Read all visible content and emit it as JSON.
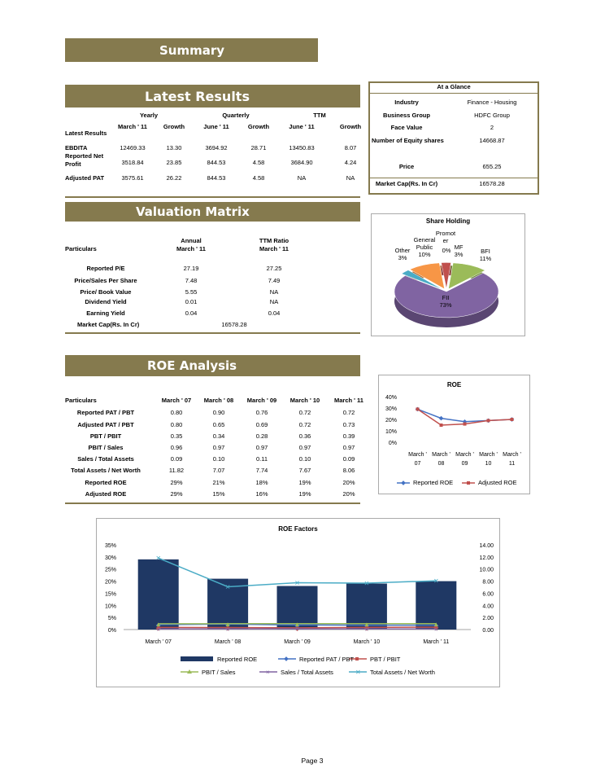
{
  "summary": {
    "title": "Summary"
  },
  "latest_results": {
    "title": "Latest Results",
    "group_headers": [
      "Yearly",
      "Quarterly",
      "TTM"
    ],
    "row_label_header": "Latest Results",
    "columns": [
      "March ' 11",
      "Growth",
      "June ' 11",
      "Growth",
      "June ' 11",
      "Growth"
    ],
    "rows": [
      {
        "label": "EBDITA",
        "values": [
          "12469.33",
          "13.30",
          "3694.92",
          "28.71",
          "13450.83",
          "8.07"
        ]
      },
      {
        "label": "Reported Net Profit",
        "values": [
          "3518.84",
          "23.85",
          "844.53",
          "4.58",
          "3684.90",
          "4.24"
        ]
      },
      {
        "label": "Adjusted PAT",
        "values": [
          "3575.61",
          "26.22",
          "844.53",
          "4.58",
          "NA",
          "NA"
        ]
      }
    ]
  },
  "at_a_glance": {
    "title": "At a Glance",
    "rows": [
      {
        "label": "Industry",
        "value": "Finance - Housing"
      },
      {
        "label": "Business Group",
        "value": "HDFC Group"
      },
      {
        "label": "Face Value",
        "value": "2"
      },
      {
        "label": "Number of Equity shares",
        "value": "14668.87"
      },
      {
        "label": "Price",
        "value": "655.25"
      },
      {
        "label": "Market Cap(Rs. In Cr)",
        "value": "16578.28"
      }
    ]
  },
  "valuation_matrix": {
    "title": "Valuation Matrix",
    "particulars_label": "Particulars",
    "col1_header_1": "Annual",
    "col1_header_2": "March ' 11",
    "col2_header_1": "TTM Ratio",
    "col2_header_2": "March ' 11",
    "rows": [
      {
        "label": "Reported P/E",
        "annual": "27.19",
        "ttm": "27.25"
      },
      {
        "label": "Price/Sales Per Share",
        "annual": "7.48",
        "ttm": "7.49"
      },
      {
        "label": "Price/ Book Value",
        "annual": "5.55",
        "ttm": "NA"
      },
      {
        "label": "Dividend Yield",
        "annual": "0.01",
        "ttm": "NA"
      },
      {
        "label": "Earning Yield",
        "annual": "0.04",
        "ttm": "0.04"
      }
    ],
    "market_cap_label": "Market Cap(Rs. In Cr)",
    "market_cap_value": "16578.28"
  },
  "roe_analysis": {
    "title": "ROE Analysis",
    "particulars_label": "Particulars",
    "columns": [
      "March ' 07",
      "March ' 08",
      "March ' 09",
      "March ' 10",
      "March ' 11"
    ],
    "rows": [
      {
        "label": "Reported PAT / PBT",
        "values": [
          "0.80",
          "0.90",
          "0.76",
          "0.72",
          "0.72"
        ]
      },
      {
        "label": "Adjusted PAT / PBT",
        "values": [
          "0.80",
          "0.65",
          "0.69",
          "0.72",
          "0.73"
        ]
      },
      {
        "label": "PBT / PBIT",
        "values": [
          "0.35",
          "0.34",
          "0.28",
          "0.36",
          "0.39"
        ]
      },
      {
        "label": "PBIT / Sales",
        "values": [
          "0.96",
          "0.97",
          "0.97",
          "0.97",
          "0.97"
        ]
      },
      {
        "label": "Sales / Total Assets",
        "values": [
          "0.09",
          "0.10",
          "0.11",
          "0.10",
          "0.09"
        ]
      },
      {
        "label": "Total Assets / Net Worth",
        "values": [
          "11.82",
          "7.07",
          "7.74",
          "7.67",
          "8.06"
        ]
      },
      {
        "label": "Reported ROE",
        "values": [
          "29%",
          "21%",
          "18%",
          "19%",
          "20%"
        ]
      },
      {
        "label": "Adjusted ROE",
        "values": [
          "29%",
          "15%",
          "16%",
          "19%",
          "20%"
        ]
      }
    ]
  },
  "page_number": "Page 3",
  "colors": {
    "band": "#857a4e",
    "navy": "#1f3864",
    "blue": "#4472c4",
    "red": "#c0504d",
    "green": "#9bbb59",
    "purple": "#8064a2",
    "teal": "#4bacc6",
    "orange": "#f79646"
  },
  "chart_data": [
    {
      "type": "pie",
      "title": "Share Holding",
      "slices": [
        {
          "label": "Promoter",
          "value": 0
        },
        {
          "label": "MF",
          "value": 3
        },
        {
          "label": "BFI",
          "value": 11
        },
        {
          "label": "FII",
          "value": 73
        },
        {
          "label": "Other",
          "value": 3
        },
        {
          "label": "General Public",
          "value": 10
        }
      ],
      "slice_labels": [
        "Promot er",
        "0%",
        "MF 3%",
        "BFI 11%",
        "FII 73%",
        "Other 3%",
        "General Public 10%"
      ]
    },
    {
      "type": "line",
      "title": "ROE",
      "categories": [
        "March ' 07",
        "March ' 08",
        "March ' 09",
        "March ' 10",
        "March ' 11"
      ],
      "y_ticks": [
        "0%",
        "10%",
        "20%",
        "30%",
        "40%"
      ],
      "ylim": [
        0,
        40
      ],
      "series": [
        {
          "name": "Reported ROE",
          "values": [
            29,
            21,
            18,
            19,
            20
          ]
        },
        {
          "name": "Adjusted ROE",
          "values": [
            29,
            15,
            16,
            19,
            20
          ]
        }
      ],
      "legend": "bottom"
    },
    {
      "type": "bar",
      "title": "ROE Factors",
      "categories": [
        "March ' 07",
        "March ' 08",
        "March ' 09",
        "March ' 10",
        "March ' 11"
      ],
      "y_left_ticks": [
        "0%",
        "5%",
        "10%",
        "15%",
        "20%",
        "25%",
        "30%",
        "35%"
      ],
      "y_right_ticks": [
        "0.00",
        "2.00",
        "4.00",
        "6.00",
        "8.00",
        "10.00",
        "12.00",
        "14.00"
      ],
      "ylim_left": [
        0,
        35
      ],
      "ylim_right": [
        0,
        14
      ],
      "bars": {
        "name": "Reported ROE",
        "values": [
          29,
          21,
          18,
          19,
          20
        ]
      },
      "lines": [
        {
          "name": "Reported PAT / PBT",
          "values": [
            0.8,
            0.9,
            0.76,
            0.72,
            0.72
          ]
        },
        {
          "name": "PBT / PBIT",
          "values": [
            0.35,
            0.34,
            0.28,
            0.36,
            0.39
          ]
        },
        {
          "name": "PBIT / Sales",
          "values": [
            0.96,
            0.97,
            0.97,
            0.97,
            0.97
          ]
        },
        {
          "name": "Sales / Total Assets",
          "values": [
            0.09,
            0.1,
            0.11,
            0.1,
            0.09
          ]
        },
        {
          "name": "Total Assets / Net Worth",
          "values": [
            11.82,
            7.07,
            7.74,
            7.67,
            8.06
          ]
        }
      ],
      "legend": "bottom"
    }
  ]
}
